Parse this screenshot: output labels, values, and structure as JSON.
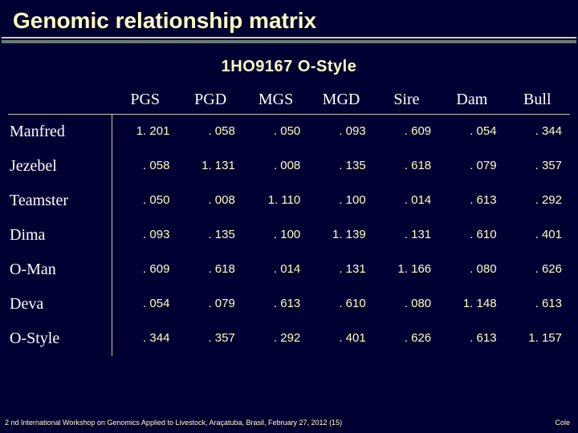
{
  "title": "Genomic relationship matrix",
  "subtitle": "1HO9167 O-Style",
  "colors": {
    "background": "#000032",
    "heading": "#ffffc0",
    "text_white": "#ffffff",
    "data_text": "#ffffc0",
    "rule_light": "#d0d0a0",
    "rule_dark": "#6a7a7a",
    "table_border": "#c8c8a8"
  },
  "typography": {
    "title_fontsize": 28,
    "subtitle_fontsize": 20,
    "header_fontsize": 20,
    "data_fontsize": 15,
    "footer_fontsize": 9,
    "title_weight": "bold",
    "header_family": "Georgia serif",
    "body_family": "Verdana sans-serif"
  },
  "table": {
    "type": "table",
    "columns": [
      "PGS",
      "PGD",
      "MGS",
      "MGD",
      "Sire",
      "Dam",
      "Bull"
    ],
    "row_labels": [
      "Manfred",
      "Jezebel",
      "Teamster",
      "Dima",
      "O-Man",
      "Deva",
      "O-Style"
    ],
    "rows": [
      [
        "1. 201",
        ". 058",
        ". 050",
        ". 093",
        ". 609",
        ". 054",
        ". 344"
      ],
      [
        ". 058",
        "1. 131",
        ". 008",
        ". 135",
        ". 618",
        ". 079",
        ". 357"
      ],
      [
        ". 050",
        ". 008",
        "1. 110",
        ". 100",
        ". 014",
        ". 613",
        ". 292"
      ],
      [
        ". 093",
        ". 135",
        ". 100",
        "1. 139",
        ". 131",
        ". 610",
        ". 401"
      ],
      [
        ". 609",
        ". 618",
        ". 014",
        ". 131",
        "1. 166",
        ". 080",
        ". 626"
      ],
      [
        ". 054",
        ". 079",
        ". 613",
        ". 610",
        ". 080",
        "1. 148",
        ". 613"
      ],
      [
        ". 344",
        ". 357",
        ". 292",
        ". 401",
        ". 626",
        ". 613",
        "1. 157"
      ]
    ]
  },
  "footer": {
    "left": "2 nd International Workshop on Genomics Applied to Livestock, Araçatuba, Brasil, February 27, 2012 (15)",
    "right": "Cole"
  }
}
